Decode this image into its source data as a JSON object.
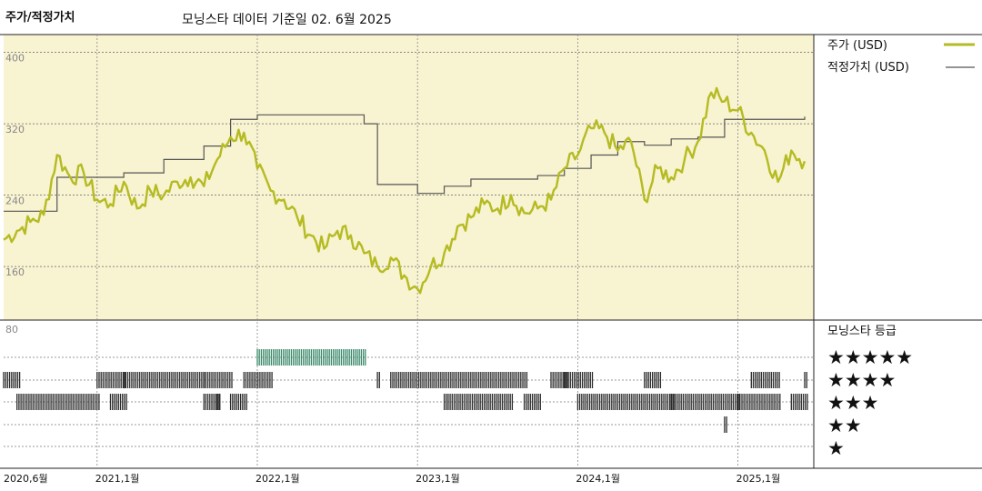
{
  "header": {
    "title": "주가/적정가치",
    "subtitle": "모닝스타 데이터 기준일 02. 6월 2025"
  },
  "colors": {
    "price": "#b5bb22",
    "fair_value": "#555555",
    "background": "#f8f3d1",
    "rating_5": "#3c8a6c",
    "rating_default": "#2b2b2b"
  },
  "chart_data": {
    "type": "line",
    "ylim": [
      100,
      420
    ],
    "yticks": [
      "400",
      "320",
      "240",
      "160"
    ],
    "y80": "80",
    "xticks": [
      "2020,6월",
      "2021,1월",
      "2022,1월",
      "2023,1월",
      "2024,1월",
      "2025,1월"
    ],
    "x_range": [
      "2020-06",
      "2025-06"
    ],
    "series": [
      {
        "name": "주가 (USD)",
        "points": [
          [
            "2020-06",
            190
          ],
          [
            "2020-07",
            200
          ],
          [
            "2020-08",
            210
          ],
          [
            "2020-09",
            218
          ],
          [
            "2020-10",
            285
          ],
          [
            "2020-11",
            260
          ],
          [
            "2020-12",
            265
          ],
          [
            "2021-01",
            235
          ],
          [
            "2021-02",
            230
          ],
          [
            "2021-03",
            255
          ],
          [
            "2021-04",
            225
          ],
          [
            "2021-05",
            245
          ],
          [
            "2021-06",
            240
          ],
          [
            "2021-07",
            255
          ],
          [
            "2021-08",
            260
          ],
          [
            "2021-09",
            250
          ],
          [
            "2021-10",
            280
          ],
          [
            "2021-11",
            305
          ],
          [
            "2021-12",
            310
          ],
          [
            "2022-01",
            270
          ],
          [
            "2022-02",
            245
          ],
          [
            "2022-03",
            235
          ],
          [
            "2022-04",
            215
          ],
          [
            "2022-05",
            195
          ],
          [
            "2022-06",
            180
          ],
          [
            "2022-07",
            200
          ],
          [
            "2022-08",
            195
          ],
          [
            "2022-09",
            175
          ],
          [
            "2022-10",
            160
          ],
          [
            "2022-11",
            170
          ],
          [
            "2022-12",
            150
          ],
          [
            "2023-01",
            135
          ],
          [
            "2023-02",
            160
          ],
          [
            "2023-03",
            175
          ],
          [
            "2023-04",
            205
          ],
          [
            "2023-05",
            215
          ],
          [
            "2023-06",
            230
          ],
          [
            "2023-07",
            225
          ],
          [
            "2023-08",
            240
          ],
          [
            "2023-09",
            220
          ],
          [
            "2023-10",
            225
          ],
          [
            "2023-11",
            235
          ],
          [
            "2023-12",
            270
          ],
          [
            "2024-01",
            285
          ],
          [
            "2024-02",
            315
          ],
          [
            "2024-03",
            310
          ],
          [
            "2024-04",
            290
          ],
          [
            "2024-05",
            300
          ],
          [
            "2024-06",
            235
          ],
          [
            "2024-07",
            270
          ],
          [
            "2024-08",
            260
          ],
          [
            "2024-09",
            280
          ],
          [
            "2024-10",
            300
          ],
          [
            "2024-11",
            355
          ],
          [
            "2024-12",
            345
          ],
          [
            "2025-01",
            335
          ],
          [
            "2025-02",
            310
          ],
          [
            "2025-03",
            290
          ],
          [
            "2025-04",
            255
          ],
          [
            "2025-05",
            290
          ],
          [
            "2025-06",
            278
          ]
        ]
      },
      {
        "name": "적정가치 (USD)",
        "steps": [
          [
            "2020-06",
            222
          ],
          [
            "2020-10",
            260
          ],
          [
            "2021-03",
            265
          ],
          [
            "2021-06",
            280
          ],
          [
            "2021-09",
            295
          ],
          [
            "2021-11",
            325
          ],
          [
            "2022-01",
            330
          ],
          [
            "2022-09",
            320
          ],
          [
            "2022-10",
            252
          ],
          [
            "2022-12",
            252
          ],
          [
            "2023-01",
            242
          ],
          [
            "2023-03",
            250
          ],
          [
            "2023-05",
            258
          ],
          [
            "2023-10",
            262
          ],
          [
            "2023-12",
            270
          ],
          [
            "2024-02",
            285
          ],
          [
            "2024-04",
            300
          ],
          [
            "2024-06",
            296
          ],
          [
            "2024-08",
            303
          ],
          [
            "2024-10",
            305
          ],
          [
            "2024-12",
            325
          ],
          [
            "2025-06",
            328
          ]
        ]
      }
    ],
    "rating_panel": {
      "title": "모닝스타 등급",
      "levels": [
        "★★★★★",
        "★★★★",
        "★★★",
        "★★",
        "★"
      ],
      "bands": {
        "5": [
          [
            "2022-01",
            "2022-09"
          ]
        ],
        "4": [
          [
            "2020-06",
            "2020-07"
          ],
          [
            "2021-01",
            "2021-03"
          ],
          [
            "2021-03",
            "2021-09"
          ],
          [
            "2021-09",
            "2021-11"
          ],
          [
            "2021-12",
            "2022-02"
          ],
          [
            "2022-10",
            "2022-10"
          ],
          [
            "2022-11",
            "2023-09"
          ],
          [
            "2023-11",
            "2023-12"
          ],
          [
            "2023-12",
            "2024-02"
          ],
          [
            "2024-06",
            "2024-07"
          ],
          [
            "2025-02",
            "2025-04"
          ],
          [
            "2025-06",
            "2025-06"
          ]
        ],
        "3": [
          [
            "2020-07",
            "2021-01"
          ],
          [
            "2021-02",
            "2021-03"
          ],
          [
            "2021-09",
            "2021-10"
          ],
          [
            "2021-10",
            "2021-10"
          ],
          [
            "2021-11",
            "2021-12"
          ],
          [
            "2023-03",
            "2023-08"
          ],
          [
            "2023-09",
            "2023-10"
          ],
          [
            "2024-01",
            "2024-08"
          ],
          [
            "2024-08",
            "2025-01"
          ],
          [
            "2025-01",
            "2025-04"
          ],
          [
            "2025-05",
            "2025-06"
          ]
        ],
        "2": [
          [
            "2024-12",
            "2024-12"
          ]
        ],
        "1": []
      }
    }
  }
}
